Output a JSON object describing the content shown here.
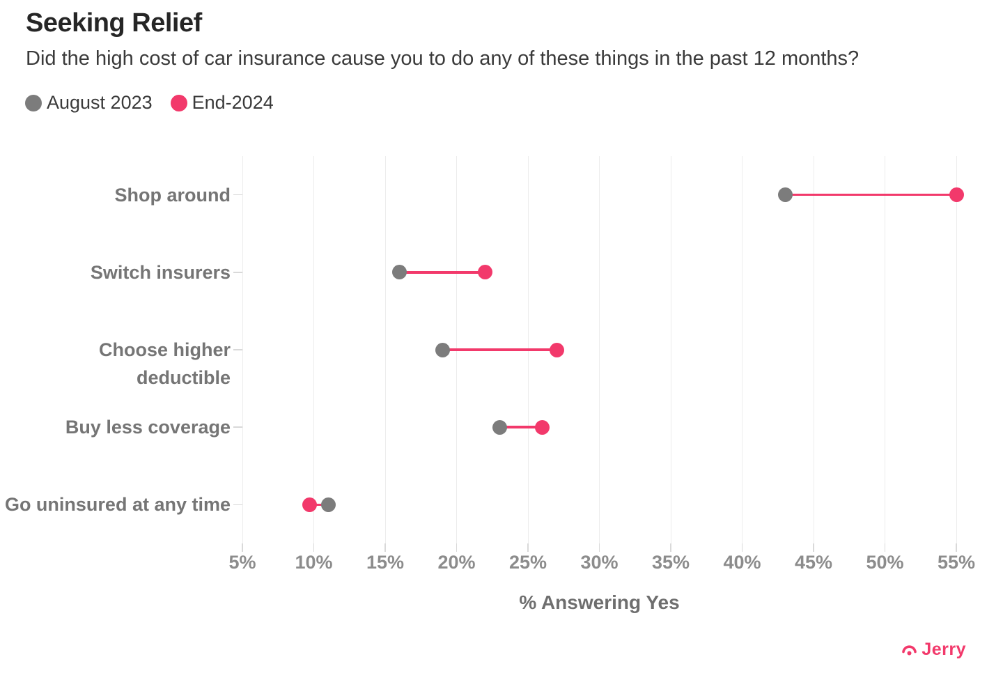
{
  "chart_data": {
    "type": "dumbbell",
    "title": "Seeking Relief",
    "subtitle": "Did the high cost of car insurance cause you to do any of these things in the past 12 months?",
    "categories": [
      "Shop around",
      "Switch insurers",
      "Choose higher deductible",
      "Buy less coverage",
      "Go uninsured at any time"
    ],
    "series": [
      {
        "name": "August 2023",
        "color": "#7c7c7c",
        "values": [
          43,
          16,
          19,
          23,
          11
        ]
      },
      {
        "name": "End-2024",
        "color": "#f2396b",
        "values": [
          55,
          22,
          27,
          26,
          9.7
        ]
      }
    ],
    "connector_color": "#f2396b",
    "xlabel": "% Answering Yes",
    "xlim": [
      5,
      55
    ],
    "x_ticks": [
      5,
      10,
      15,
      20,
      25,
      30,
      35,
      40,
      45,
      50,
      55
    ],
    "x_tick_labels": [
      "5%",
      "10%",
      "15%",
      "20%",
      "25%",
      "30%",
      "35%",
      "40%",
      "45%",
      "50%",
      "55%"
    ],
    "grid": "vertical",
    "legend_position": "top-left"
  },
  "branding": {
    "logo_text": "Jerry",
    "color": "#f2396b"
  }
}
